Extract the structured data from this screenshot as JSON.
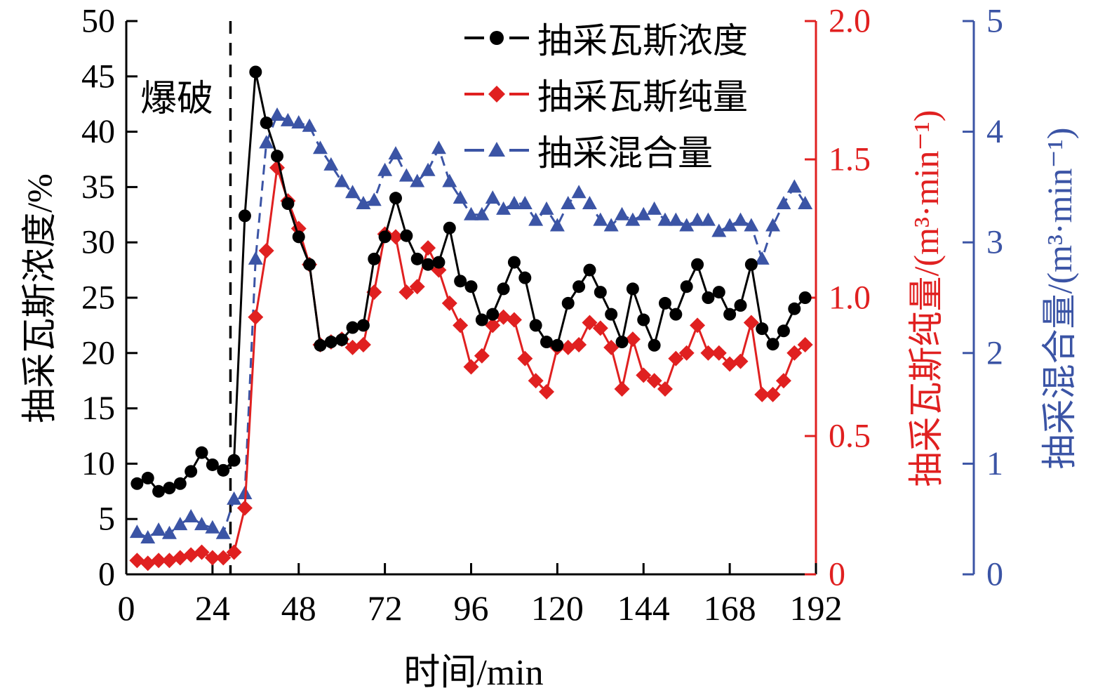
{
  "figure": {
    "blast_label": "爆破",
    "x_axis_title": "时间/min",
    "left_axis_title": "抽采瓦斯浓度/%",
    "red_axis_title": "抽采瓦斯纯量/(m³·min⁻¹)",
    "blue_axis_title": "抽采混合量/(m³·min⁻¹)"
  },
  "legend": {
    "item1": "抽采瓦斯浓度",
    "item2": "抽采瓦斯纯量",
    "item3": "抽采混合量"
  },
  "chart_data": {
    "type": "line",
    "title": "",
    "xlabel": "时间/min",
    "x_range": [
      0,
      192
    ],
    "x_ticks": [
      0,
      24,
      48,
      72,
      96,
      120,
      144,
      168,
      192
    ],
    "annotation": {
      "text": "爆破",
      "x": 29,
      "style": "vertical-dashed-line"
    },
    "axes": {
      "left": {
        "label": "抽采瓦斯浓度/%",
        "min": 0,
        "max": 50,
        "ticks": [
          0,
          5,
          10,
          15,
          20,
          25,
          30,
          35,
          40,
          45,
          50
        ],
        "color": "#000000"
      },
      "red": {
        "label": "抽采瓦斯纯量/(m³·min⁻¹)",
        "min": 0,
        "max": 2.0,
        "ticks": [
          0,
          0.5,
          1.0,
          1.5,
          2.0
        ],
        "tick_labels": [
          "0",
          "0.5",
          "1.0",
          "1.5",
          "2.0"
        ],
        "color": "#e02020"
      },
      "blue": {
        "label": "抽采混合量/(m³·min⁻¹)",
        "min": 0,
        "max": 5,
        "ticks": [
          0,
          1,
          2,
          3,
          4,
          5
        ],
        "color": "#3b54a5"
      }
    },
    "x": [
      3,
      6,
      9,
      12,
      15,
      18,
      21,
      24,
      27,
      30,
      33,
      36,
      39,
      42,
      45,
      48,
      51,
      54,
      57,
      60,
      63,
      66,
      69,
      72,
      75,
      78,
      81,
      84,
      87,
      90,
      93,
      96,
      99,
      102,
      105,
      108,
      111,
      114,
      117,
      120,
      123,
      126,
      129,
      132,
      135,
      138,
      141,
      144,
      147,
      150,
      153,
      156,
      159,
      162,
      165,
      168,
      171,
      174,
      177,
      180,
      183,
      186,
      189
    ],
    "series": [
      {
        "name": "抽采混合量",
        "axis": "blue",
        "color": "#3b54a5",
        "marker": "triangle",
        "dash": "14 9",
        "values": [
          0.38,
          0.33,
          0.4,
          0.37,
          0.45,
          0.52,
          0.45,
          0.42,
          0.37,
          0.68,
          0.73,
          2.85,
          3.9,
          4.15,
          4.1,
          4.08,
          4.05,
          3.85,
          3.7,
          3.55,
          3.45,
          3.35,
          3.38,
          3.65,
          3.8,
          3.6,
          3.55,
          3.65,
          3.85,
          3.55,
          3.4,
          3.25,
          3.25,
          3.4,
          3.3,
          3.35,
          3.35,
          3.2,
          3.3,
          3.15,
          3.35,
          3.45,
          3.35,
          3.2,
          3.15,
          3.25,
          3.2,
          3.25,
          3.3,
          3.2,
          3.2,
          3.15,
          3.2,
          3.2,
          3.1,
          3.15,
          3.2,
          3.15,
          2.85,
          3.15,
          3.35,
          3.5,
          3.35
        ]
      },
      {
        "name": "抽采瓦斯纯量",
        "axis": "red",
        "color": "#e02020",
        "marker": "diamond",
        "dash": "",
        "values": [
          0.05,
          0.04,
          0.05,
          0.05,
          0.06,
          0.07,
          0.08,
          0.06,
          0.06,
          0.08,
          0.24,
          0.93,
          1.17,
          1.47,
          1.35,
          1.25,
          1.12,
          0.83,
          0.84,
          0.85,
          0.82,
          0.83,
          1.02,
          1.23,
          1.22,
          1.02,
          1.04,
          1.18,
          1.1,
          0.98,
          0.9,
          0.75,
          0.79,
          0.9,
          0.93,
          0.92,
          0.78,
          0.7,
          0.66,
          0.82,
          0.82,
          0.83,
          0.91,
          0.89,
          0.82,
          0.67,
          0.85,
          0.72,
          0.7,
          0.67,
          0.78,
          0.8,
          0.9,
          0.8,
          0.8,
          0.76,
          0.77,
          0.91,
          0.65,
          0.65,
          0.7,
          0.8,
          0.83
        ]
      },
      {
        "name": "抽采瓦斯浓度",
        "axis": "left",
        "color": "#000000",
        "marker": "circle",
        "dash": "",
        "values": [
          8.2,
          8.7,
          7.5,
          7.8,
          8.2,
          9.3,
          11.0,
          9.9,
          9.4,
          10.3,
          32.4,
          45.4,
          40.8,
          37.8,
          33.5,
          30.5,
          28.0,
          20.7,
          21.0,
          21.2,
          22.3,
          22.5,
          28.5,
          30.5,
          34.0,
          30.6,
          28.5,
          28.0,
          28.2,
          31.3,
          26.5,
          26.0,
          23.0,
          23.5,
          25.8,
          28.2,
          26.8,
          22.5,
          21.0,
          20.7,
          24.5,
          26.0,
          27.5,
          25.5,
          23.5,
          21.0,
          25.8,
          23.0,
          20.7,
          24.5,
          23.5,
          26.0,
          28.0,
          25.0,
          25.5,
          23.5,
          24.3,
          28.0,
          22.2,
          20.8,
          22.0,
          24.0,
          25.0
        ]
      }
    ]
  }
}
